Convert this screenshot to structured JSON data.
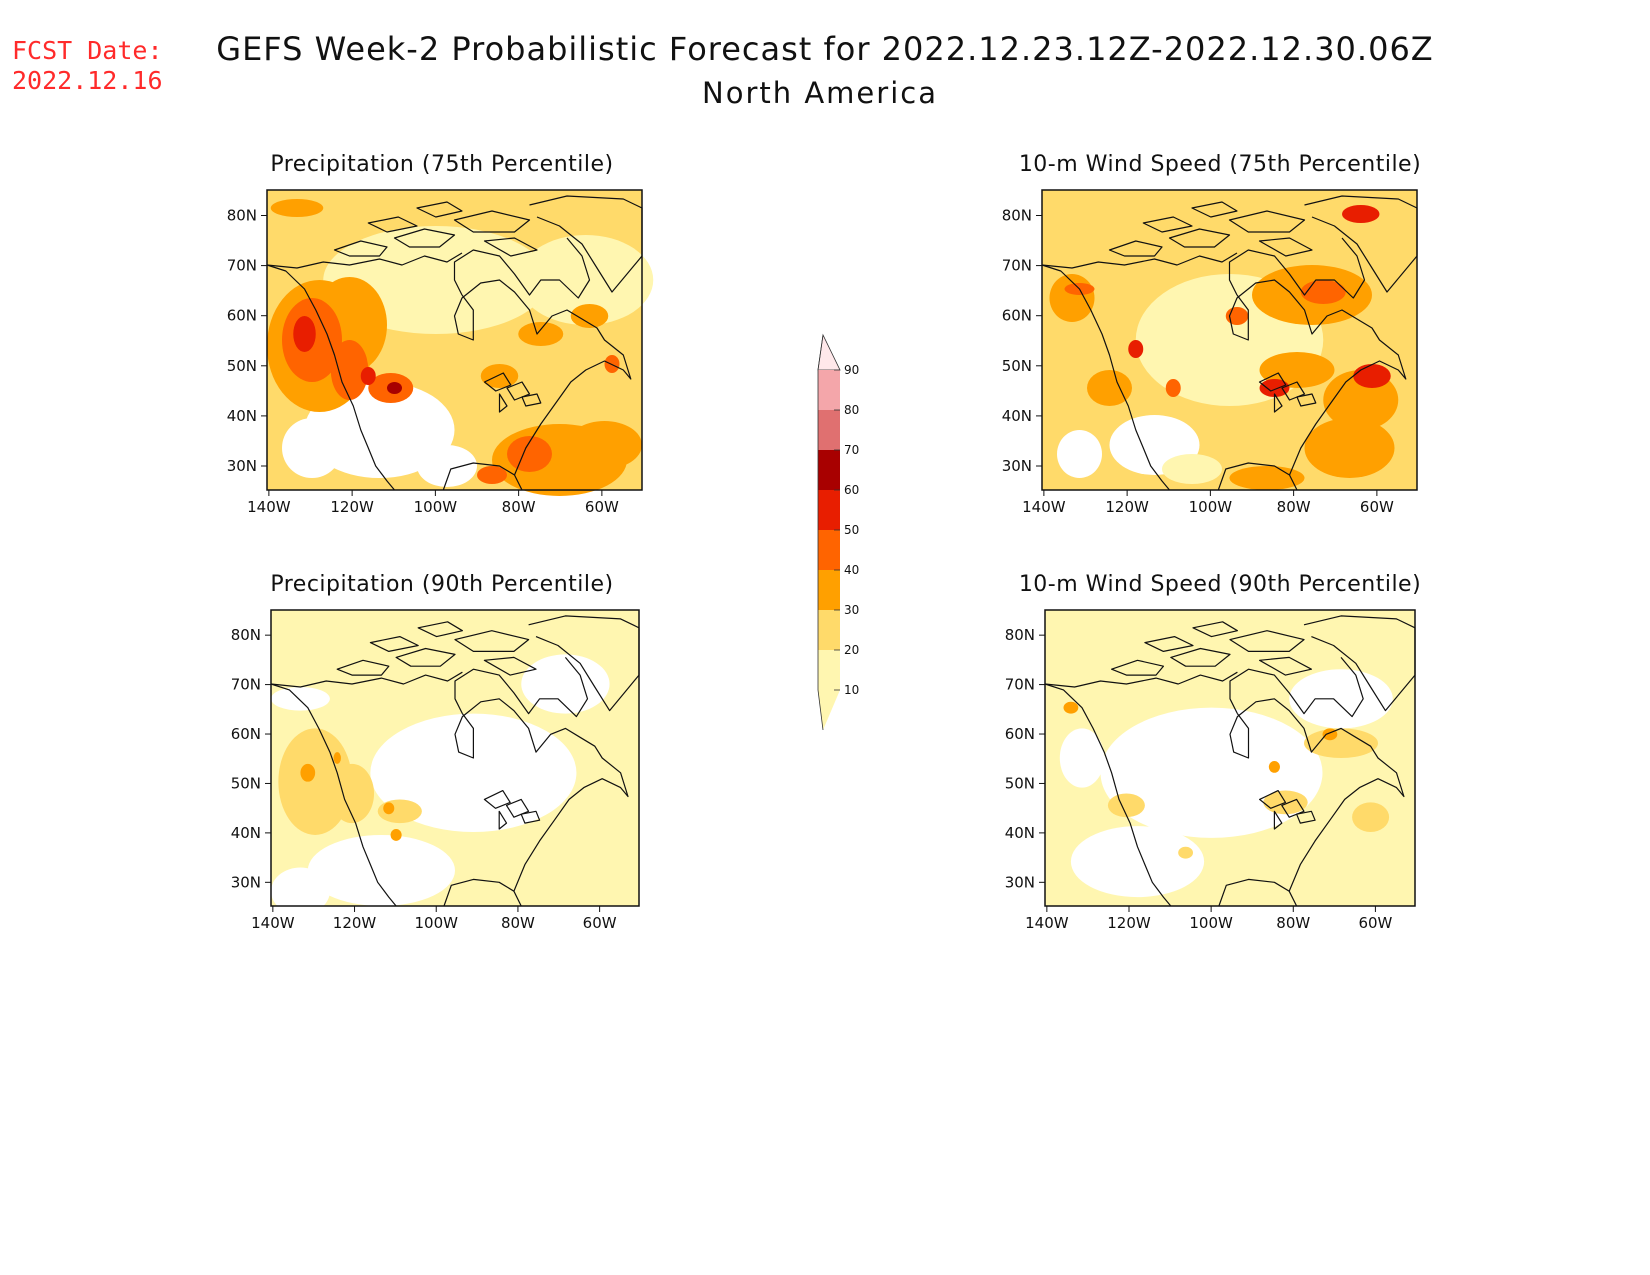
{
  "header": {
    "fcst_label": "FCST Date:",
    "fcst_date": "2022.12.16",
    "title": "GEFS Week-2 Probabilistic Forecast for 2022.12.23.12Z-2022.12.30.06Z",
    "subtitle": "North America"
  },
  "axes": {
    "lat_labels": [
      "80N",
      "70N",
      "60N",
      "50N",
      "40N",
      "30N"
    ],
    "lon_labels": [
      "140W",
      "120W",
      "100W",
      "80W",
      "60W"
    ]
  },
  "colorbar": {
    "levels": [
      "90",
      "80",
      "70",
      "60",
      "50",
      "40",
      "30",
      "20",
      "10"
    ],
    "colors": [
      "#ffe8ea",
      "#f4a6aa",
      "#e07070",
      "#a80000",
      "#e81e00",
      "#ff6400",
      "#ffa000",
      "#ffda6a",
      "#fff6b0"
    ]
  },
  "panels": [
    {
      "id": "precip-75",
      "title": "Precipitation (75th Percentile)"
    },
    {
      "id": "wind-75",
      "title": "10-m Wind Speed (75th Percentile)"
    },
    {
      "id": "precip-90",
      "title": "Precipitation (90th Percentile)"
    },
    {
      "id": "wind-90",
      "title": "10-m Wind Speed (90th Percentile)"
    }
  ]
}
